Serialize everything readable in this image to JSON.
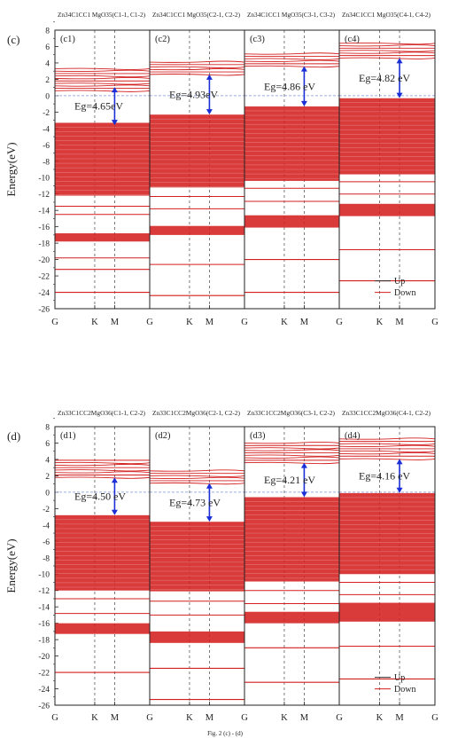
{
  "figure": {
    "caption": "Fig. 2 (c) - (d)"
  },
  "chart_data": [
    {
      "type": "line",
      "label": "(c)",
      "ylabel": "Energy(eV)",
      "ylim": [
        -26,
        8
      ],
      "ytick_step": 2,
      "x_ticks": [
        "G",
        "K",
        "M",
        "G"
      ],
      "legend": [
        "Up",
        "Down"
      ],
      "legend_position": "bottom-right",
      "panels": [
        {
          "id": "c1",
          "header": "Zn34C1CC1 MgO35(C1-1, C1-2)",
          "bandgap_label": "Eg=4.65eV",
          "gap": [
            -3.6,
            1.05
          ],
          "cond_bands": [
            0.6,
            0.9,
            1.2,
            1.5,
            1.8,
            2.1,
            2.4,
            2.7,
            3.0,
            3.3
          ],
          "val_block": [
            -3.3,
            -12.2
          ],
          "val_lines": [
            -13.5,
            -14.5
          ],
          "deep_block": [
            -16.8,
            -17.8
          ],
          "deep_lines": [
            -19.8,
            -21.2,
            -24.0
          ]
        },
        {
          "id": "c2",
          "header": "Zn34C1CC1 MgO35(C2-1, C2-2)",
          "bandgap_label": "Eg=4.93eV",
          "gap": [
            -2.3,
            2.6
          ],
          "cond_bands": [
            2.6,
            2.9,
            3.2,
            3.5,
            3.8,
            4.1
          ],
          "val_block": [
            -2.3,
            -11.2
          ],
          "val_lines": [
            -12.3,
            -13.8
          ],
          "deep_block": [
            -15.9,
            -17.0
          ],
          "deep_lines": [
            -20.6,
            -24.4
          ]
        },
        {
          "id": "c3",
          "header": "Zn34C1CC1 MgO35(C3-1, C3-2)",
          "bandgap_label": "Eg=4.86 eV",
          "gap": [
            -1.3,
            3.6
          ],
          "cond_bands": [
            3.6,
            3.9,
            4.2,
            4.5,
            4.8,
            5.1
          ],
          "val_block": [
            -1.3,
            -10.4
          ],
          "val_lines": [
            -11.3,
            -12.9
          ],
          "deep_block": [
            -14.6,
            -16.1
          ],
          "deep_lines": [
            -20.0,
            -24.0
          ]
        },
        {
          "id": "c4",
          "header": "Zn34C1CC1 MgO35(C4-1, C4-2)",
          "bandgap_label": "Eg=4.82 eV",
          "gap": [
            -0.3,
            4.6
          ],
          "cond_bands": [
            4.6,
            4.9,
            5.2,
            5.5,
            5.8,
            6.1,
            6.4
          ],
          "val_block": [
            -0.3,
            -9.6
          ],
          "val_lines": [
            -10.5,
            -12.0
          ],
          "deep_block": [
            -13.2,
            -14.7
          ],
          "deep_lines": [
            -18.8,
            -22.6
          ]
        }
      ]
    },
    {
      "type": "line",
      "label": "(d)",
      "ylabel": "Energy(eV)",
      "ylim": [
        -26,
        8
      ],
      "ytick_step": 2,
      "x_ticks": [
        "G",
        "K",
        "M",
        "G"
      ],
      "legend": [
        "Up",
        "Down"
      ],
      "legend_position": "bottom-right",
      "panels": [
        {
          "id": "d1",
          "header": "Zn33C1CC2MgO36(C1-1, C2-2)",
          "bandgap_label": "Eg=4.50 eV",
          "gap": [
            -2.8,
            1.8
          ],
          "cond_bands": [
            1.8,
            2.1,
            2.4,
            2.7,
            3.0,
            3.3,
            3.6,
            3.9
          ],
          "val_block": [
            -2.8,
            -12.0
          ],
          "val_lines": [
            -13.0,
            -14.8
          ],
          "deep_block": [
            -16.0,
            -17.3
          ],
          "deep_lines": [
            -22.0
          ]
        },
        {
          "id": "d2",
          "header": "Zn33C1CC2MgO36(C2-1, C2-2)",
          "bandgap_label": "Eg=4.73 eV",
          "gap": [
            -3.6,
            1.1
          ],
          "cond_bands": [
            1.1,
            1.4,
            1.7,
            2.0,
            2.3,
            2.6
          ],
          "val_block": [
            -3.6,
            -12.1
          ],
          "val_lines": [
            -13.3,
            -15.0
          ],
          "deep_block": [
            -17.0,
            -18.4
          ],
          "deep_lines": [
            -21.5,
            -25.3
          ]
        },
        {
          "id": "d3",
          "header": "Zn33C1CC2MgO36(C3-1, C2-2)",
          "bandgap_label": "Eg=4.21 eV",
          "gap": [
            -0.6,
            3.6
          ],
          "cond_bands": [
            3.6,
            3.9,
            4.2,
            4.5,
            4.8,
            5.1,
            5.4,
            5.7,
            6.0
          ],
          "val_block": [
            -0.6,
            -10.9
          ],
          "val_lines": [
            -12.0,
            -13.6
          ],
          "deep_block": [
            -14.6,
            -16.0
          ],
          "deep_lines": [
            -19.0,
            -23.2
          ]
        },
        {
          "id": "d4",
          "header": "Zn33C1CC2MgO36(C4-1, C2-2)",
          "bandgap_label": "Eg=4.16 eV",
          "gap": [
            -0.1,
            4.06
          ],
          "cond_bands": [
            4.06,
            4.4,
            4.7,
            5.0,
            5.3,
            5.6,
            5.9,
            6.2,
            6.5
          ],
          "val_block": [
            -0.1,
            -10.0
          ],
          "val_lines": [
            -11.0,
            -12.5
          ],
          "deep_block": [
            -13.5,
            -15.8
          ],
          "deep_lines": [
            -18.8,
            -22.8
          ]
        }
      ]
    }
  ],
  "colors": {
    "band": "#d41f1f",
    "arrow": "#1a2fd6",
    "fermi": "#7d8fd8",
    "axis": "#222222"
  }
}
